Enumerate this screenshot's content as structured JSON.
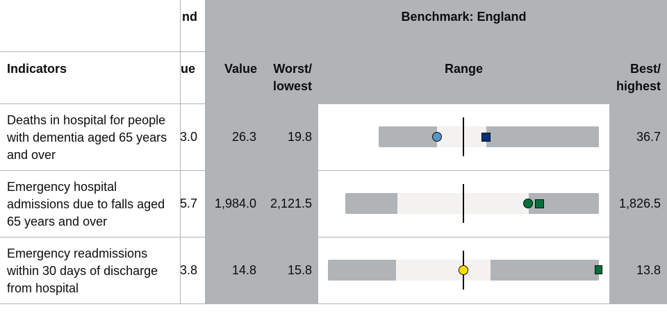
{
  "header": {
    "england_clipped": "nd",
    "benchmark": "Benchmark: England"
  },
  "columns": {
    "indicators": "Indicators",
    "england_value_clipped": "ue",
    "value": "Value",
    "worst": "Worst/\nlowest",
    "range": "Range",
    "best": "Best/\nhighest"
  },
  "rows": [
    {
      "indicator": "Deaths in hospital for people with dementia aged 65 years and over",
      "england_value_clipped": "3.0",
      "value": "26.3",
      "worst": "19.8",
      "best": "36.7",
      "range_fill_fraction": {
        "outer_start": 0.18,
        "inner_start": 0.4,
        "inner_end": 0.55
      }
    },
    {
      "indicator": "Emergency hospital admissions due to falls aged 65 years and over",
      "england_value_clipped": "5.7",
      "value": "1,984.0",
      "worst": "2,121.5",
      "best": "1,826.5"
    },
    {
      "indicator": "Emergency readmissions within 30 days of discharge from hospital",
      "england_value_clipped": "3.8",
      "value": "14.8",
      "worst": "15.8",
      "best": "13.8"
    }
  ],
  "colors": {
    "panel_grey": "#b1b4b6",
    "light_band": "#f3f2f1",
    "circle_blue": "#5694ca",
    "square_navy": "#003078",
    "circle_green": "#00703c",
    "square_green": "#00703c",
    "circle_yellow": "#ffdd00"
  }
}
